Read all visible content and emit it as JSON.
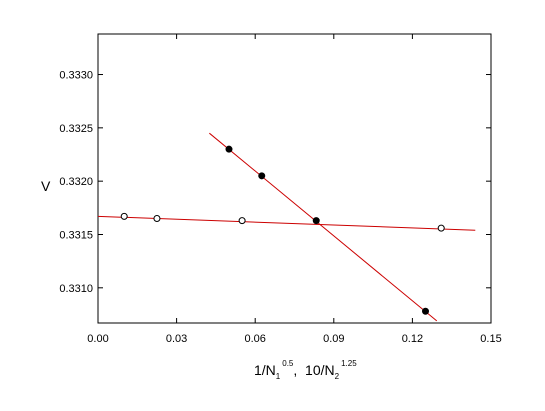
{
  "chart_data": {
    "type": "scatter",
    "title": "",
    "xlabel": {
      "part1_base": "1/N",
      "part1_sub": "1",
      "part1_sup": "0.5",
      "separator": ",  ",
      "part2_base": "10/N",
      "part2_sub": "2",
      "part2_sup": "1.25"
    },
    "ylabel": "V",
    "xlim": [
      0.0,
      0.15
    ],
    "ylim": [
      0.33067,
      0.33338
    ],
    "xticks": [
      0.0,
      0.03,
      0.06,
      0.09,
      0.12,
      0.15
    ],
    "xtick_labels": [
      "0.00",
      "0.03",
      "0.06",
      "0.09",
      "0.12",
      "0.15"
    ],
    "yticks": [
      0.331,
      0.3315,
      0.332,
      0.3325,
      0.333
    ],
    "ytick_labels": [
      "0.3310",
      "0.3315",
      "0.3320",
      "0.3325",
      "0.3330"
    ],
    "grid": false,
    "series": [
      {
        "marker": "filled-circle",
        "color": "#cc0000",
        "marker_color": "#000000",
        "points": [
          {
            "x": 0.05,
            "y": 0.3323
          },
          {
            "x": 0.0625,
            "y": 0.33205
          },
          {
            "x": 0.0833,
            "y": 0.33163
          },
          {
            "x": 0.125,
            "y": 0.33078
          }
        ],
        "fit_line": [
          {
            "x": 0.0425,
            "y": 0.33245
          },
          {
            "x": 0.1293,
            "y": 0.33069
          }
        ]
      },
      {
        "marker": "open-circle",
        "color": "#cc0000",
        "marker_color": "#000000",
        "points": [
          {
            "x": 0.01,
            "y": 0.33167
          },
          {
            "x": 0.0225,
            "y": 0.33165
          },
          {
            "x": 0.055,
            "y": 0.33163
          },
          {
            "x": 0.131,
            "y": 0.33156
          }
        ],
        "fit_line": [
          {
            "x": 0.0,
            "y": 0.33167
          },
          {
            "x": 0.144,
            "y": 0.33154
          }
        ]
      }
    ]
  }
}
